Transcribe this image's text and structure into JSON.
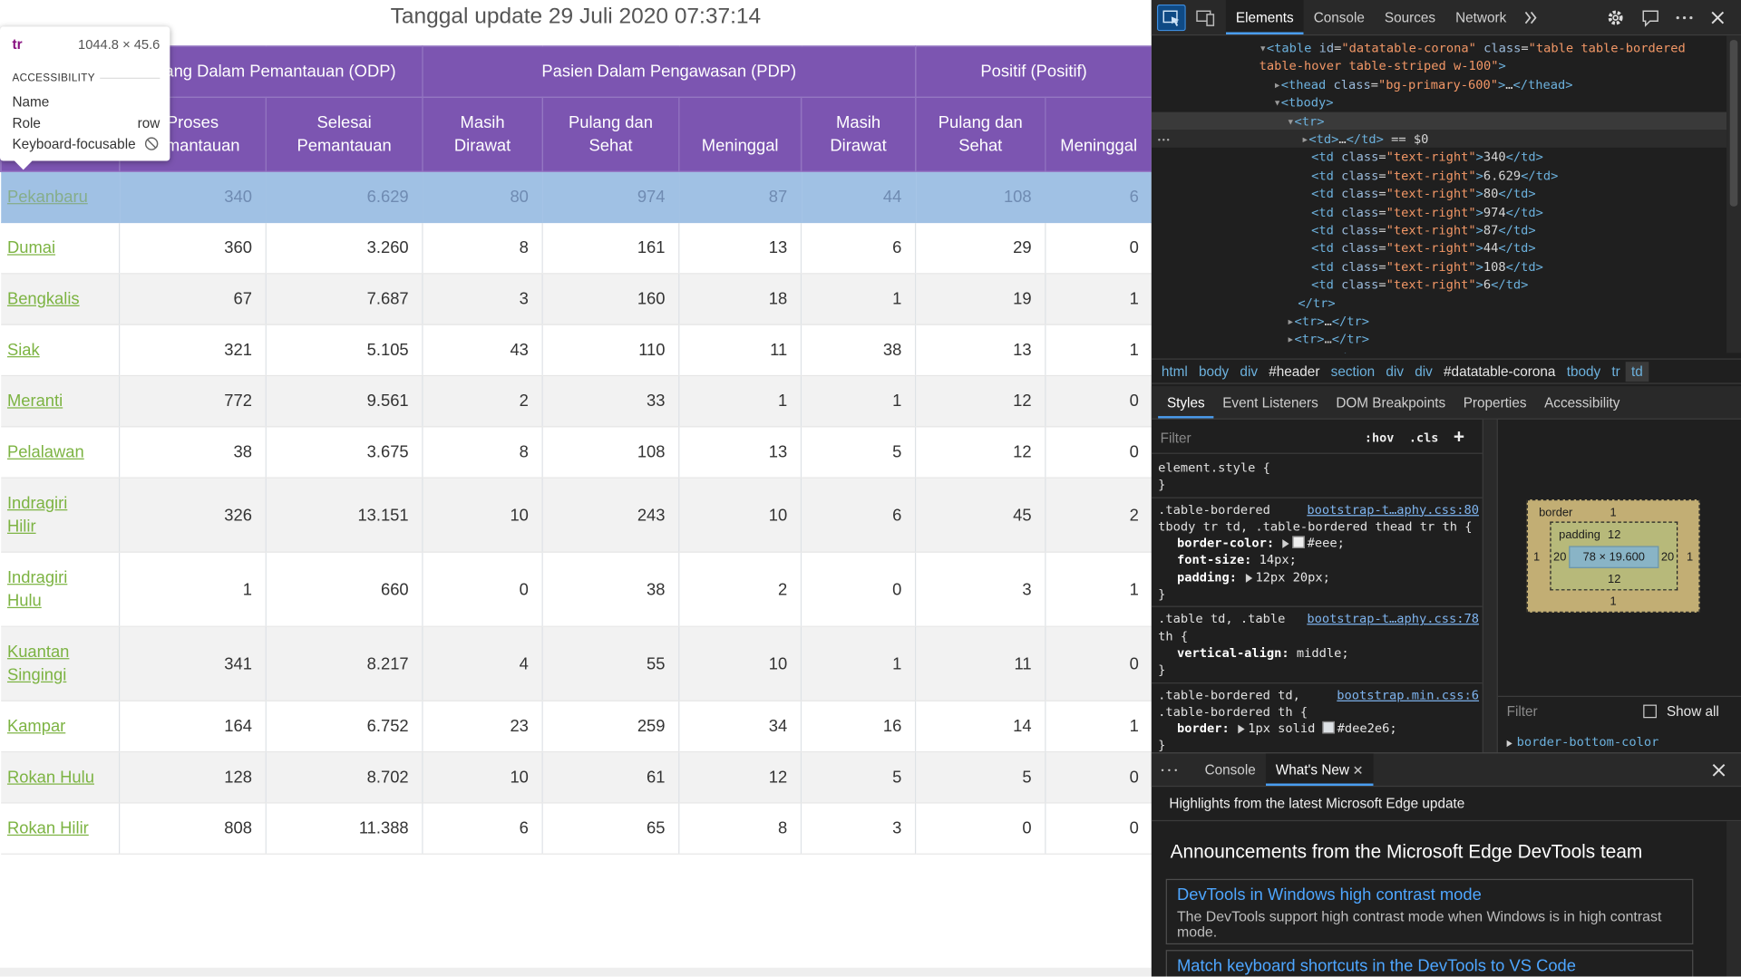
{
  "page": {
    "title": "Tanggal update 29 Juli 2020 07:37:14"
  },
  "table": {
    "group_headers": [
      "Orang Dalam Pemantauan (ODP)",
      "Pasien Dalam Pengawasan (PDP)",
      "Positif (Positif)"
    ],
    "sub_headers": [
      "Proses Pemantauan",
      "Selesai Pemantauan",
      "Masih Dirawat",
      "Pulang dan Sehat",
      "Meninggal",
      "Masih Dirawat",
      "Pulang dan Sehat",
      "Meninggal"
    ],
    "rows": [
      [
        "Pekanbaru",
        "340",
        "6.629",
        "80",
        "974",
        "87",
        "44",
        "108",
        "6"
      ],
      [
        "Dumai",
        "360",
        "3.260",
        "8",
        "161",
        "13",
        "6",
        "29",
        "0"
      ],
      [
        "Bengkalis",
        "67",
        "7.687",
        "3",
        "160",
        "18",
        "1",
        "19",
        "1"
      ],
      [
        "Siak",
        "321",
        "5.105",
        "43",
        "110",
        "11",
        "38",
        "13",
        "1"
      ],
      [
        "Meranti",
        "772",
        "9.561",
        "2",
        "33",
        "1",
        "1",
        "12",
        "0"
      ],
      [
        "Pelalawan",
        "38",
        "3.675",
        "8",
        "108",
        "13",
        "5",
        "12",
        "0"
      ],
      [
        "Indragiri Hilir",
        "326",
        "13.151",
        "10",
        "243",
        "10",
        "6",
        "45",
        "2"
      ],
      [
        "Indragiri Hulu",
        "1",
        "660",
        "0",
        "38",
        "2",
        "0",
        "3",
        "1"
      ],
      [
        "Kuantan Singingi",
        "341",
        "8.217",
        "4",
        "55",
        "10",
        "1",
        "11",
        "0"
      ],
      [
        "Kampar",
        "164",
        "6.752",
        "23",
        "259",
        "34",
        "16",
        "14",
        "1"
      ],
      [
        "Rokan Hulu",
        "128",
        "8.702",
        "10",
        "61",
        "12",
        "5",
        "5",
        "0"
      ],
      [
        "Rokan Hilir",
        "808",
        "11.388",
        "6",
        "65",
        "8",
        "3",
        "0",
        "0"
      ]
    ]
  },
  "tooltip": {
    "tag": "tr",
    "size": "1044.8 × 45.6",
    "section": "ACCESSIBILITY",
    "name_label": "Name",
    "role_label": "Role",
    "role": "row",
    "focusable_label": "Keyboard-focusable"
  },
  "devtools": {
    "tabs": [
      "Elements",
      "Console",
      "Sources",
      "Network"
    ],
    "dom_lines": [
      "▾<table id=\"datatable-corona\" class=\"table table-bordered",
      "table-hover table-striped w-100\">",
      "▸<thead class=\"bg-primary-600\">…</thead>",
      "▾<tbody>",
      "▾<tr>",
      "▸<td>…</td> == $0",
      "<td class=\"text-right\">340</td>",
      "<td class=\"text-right\">6.629</td>",
      "<td class=\"text-right\">80</td>",
      "<td class=\"text-right\">974</td>",
      "<td class=\"text-right\">87</td>",
      "<td class=\"text-right\">44</td>",
      "<td class=\"text-right\">108</td>",
      "<td class=\"text-right\">6</td>",
      "</tr>",
      "▸<tr>…</tr>",
      "▸<tr>…</tr>",
      "▸<tr>…</tr>"
    ],
    "breadcrumbs": [
      "html",
      "body",
      "div",
      "#header",
      "section",
      "div",
      "div",
      "#datatable-corona",
      "tbody",
      "tr",
      "td"
    ],
    "styles_tabs": [
      "Styles",
      "Event Listeners",
      "DOM Breakpoints",
      "Properties",
      "Accessibility"
    ],
    "filter_placeholder": "Filter",
    "hov": ":hov",
    "cls": ".cls",
    "add": "+",
    "rules": [
      {
        "selector": [
          "element.style {"
        ],
        "declarations": [],
        "close": "}"
      },
      {
        "selector": [
          ".table-bordered",
          "tbody tr td, .table-bordered thead tr th {"
        ],
        "link": "bootstrap-t…aphy.css:80",
        "declarations": [
          "border-color: #eee;",
          "font-size: 14px;",
          "padding: 12px 20px;"
        ],
        "close": "}"
      },
      {
        "selector": [
          ".table td, .table",
          "th {"
        ],
        "link": "bootstrap-t…aphy.css:78",
        "declarations": [
          "vertical-align: middle;"
        ],
        "close": "}"
      },
      {
        "selector": [
          ".table-bordered td,",
          ".table-bordered th {"
        ],
        "link": "bootstrap.min.css:6",
        "declarations": [
          "border: 1px solid #dee2e6;"
        ],
        "close": "}"
      }
    ],
    "box_model": {
      "border_label": "border",
      "padding_label": "padding",
      "content": "78 × 19.600",
      "border_top": "1",
      "border_bottom": "1",
      "border_left": "1",
      "border_right": "1",
      "padding_top": "12",
      "padding_bottom": "12",
      "padding_left": "20",
      "padding_right": "20"
    },
    "computed_filter": "Filter",
    "show_all": "Show all",
    "computed_first": "border-bottom-color",
    "drawer": {
      "tabs": [
        "Console",
        "What's New"
      ],
      "highlights": "Highlights from the latest Microsoft Edge update",
      "heading": "Announcements from the Microsoft Edge DevTools team",
      "cards": [
        {
          "title": "DevTools in Windows high contrast mode",
          "body": "The DevTools support high contrast mode when Windows is in high contrast mode."
        },
        {
          "title": "Match keyboard shortcuts in the DevTools to VS Code"
        }
      ]
    }
  }
}
